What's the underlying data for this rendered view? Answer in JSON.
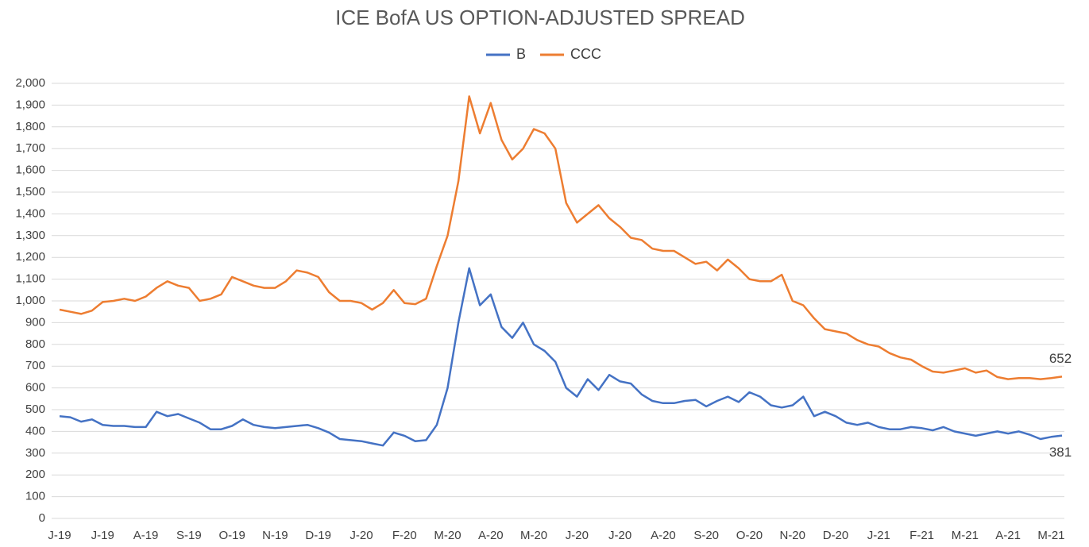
{
  "chart_data": {
    "type": "line",
    "title": "ICE BofA US OPTION-ADJUSTED SPREAD",
    "categories": [
      "J-19",
      null,
      null,
      null,
      "J-19",
      null,
      null,
      null,
      "A-19",
      null,
      null,
      null,
      "S-19",
      null,
      null,
      null,
      "O-19",
      null,
      null,
      null,
      "N-19",
      null,
      null,
      null,
      "D-19",
      null,
      null,
      null,
      "J-20",
      null,
      null,
      null,
      "F-20",
      null,
      null,
      null,
      "M-20",
      null,
      null,
      null,
      "A-20",
      null,
      null,
      null,
      "M-20",
      null,
      null,
      null,
      "J-20",
      null,
      null,
      null,
      "J-20",
      null,
      null,
      null,
      "A-20",
      null,
      null,
      null,
      "S-20",
      null,
      null,
      null,
      "O-20",
      null,
      null,
      null,
      "N-20",
      null,
      null,
      null,
      "D-20",
      null,
      null,
      null,
      "J-21",
      null,
      null,
      null,
      "F-21",
      null,
      null,
      null,
      "M-21",
      null,
      null,
      null,
      "A-21",
      null,
      null,
      null,
      "M-21",
      null
    ],
    "series": [
      {
        "name": "B",
        "color": "#4472c4",
        "values": [
          470,
          465,
          445,
          455,
          430,
          425,
          425,
          420,
          420,
          490,
          470,
          480,
          460,
          440,
          410,
          410,
          425,
          455,
          430,
          420,
          415,
          420,
          425,
          430,
          415,
          395,
          365,
          360,
          355,
          345,
          335,
          395,
          380,
          355,
          360,
          430,
          600,
          900,
          1150,
          980,
          1030,
          880,
          830,
          900,
          800,
          770,
          720,
          600,
          560,
          640,
          590,
          660,
          630,
          620,
          570,
          540,
          530,
          530,
          540,
          545,
          515,
          540,
          560,
          535,
          580,
          560,
          520,
          510,
          520,
          560,
          470,
          490,
          470,
          440,
          430,
          440,
          420,
          410,
          410,
          420,
          415,
          405,
          420,
          400,
          390,
          380,
          390,
          400,
          390,
          400,
          385,
          365,
          375,
          381
        ]
      },
      {
        "name": "CCC",
        "color": "#ed7d31",
        "values": [
          960,
          950,
          940,
          955,
          995,
          1000,
          1010,
          1000,
          1020,
          1060,
          1090,
          1070,
          1060,
          1000,
          1010,
          1030,
          1110,
          1090,
          1070,
          1060,
          1060,
          1090,
          1140,
          1130,
          1110,
          1040,
          1000,
          1000,
          990,
          960,
          990,
          1050,
          990,
          985,
          1010,
          1160,
          1300,
          1550,
          1940,
          1770,
          1910,
          1740,
          1650,
          1700,
          1790,
          1770,
          1700,
          1450,
          1360,
          1400,
          1440,
          1380,
          1340,
          1290,
          1280,
          1240,
          1230,
          1230,
          1200,
          1170,
          1180,
          1140,
          1190,
          1150,
          1100,
          1090,
          1090,
          1120,
          1000,
          980,
          920,
          870,
          860,
          850,
          820,
          800,
          790,
          760,
          740,
          730,
          700,
          675,
          670,
          680,
          690,
          670,
          680,
          650,
          640,
          645,
          645,
          640,
          645,
          652
        ]
      }
    ],
    "ylim": [
      0,
      2000
    ],
    "yticks": [
      0,
      100,
      200,
      300,
      400,
      500,
      600,
      700,
      800,
      900,
      {
        "value": 1000,
        "label": "1,000"
      },
      {
        "value": 1100,
        "label": "1,100"
      },
      {
        "value": 1200,
        "label": "1,200"
      },
      {
        "value": 1300,
        "label": "1,300"
      },
      {
        "value": 1400,
        "label": "1,400"
      },
      {
        "value": 1500,
        "label": "1,500"
      },
      {
        "value": 1600,
        "label": "1,600"
      },
      {
        "value": 1700,
        "label": "1,700"
      },
      {
        "value": 1800,
        "label": "1,800"
      },
      {
        "value": 1900,
        "label": "1,900"
      },
      {
        "value": 2000,
        "label": "2,000"
      }
    ],
    "grid": true,
    "legend": "top"
  }
}
